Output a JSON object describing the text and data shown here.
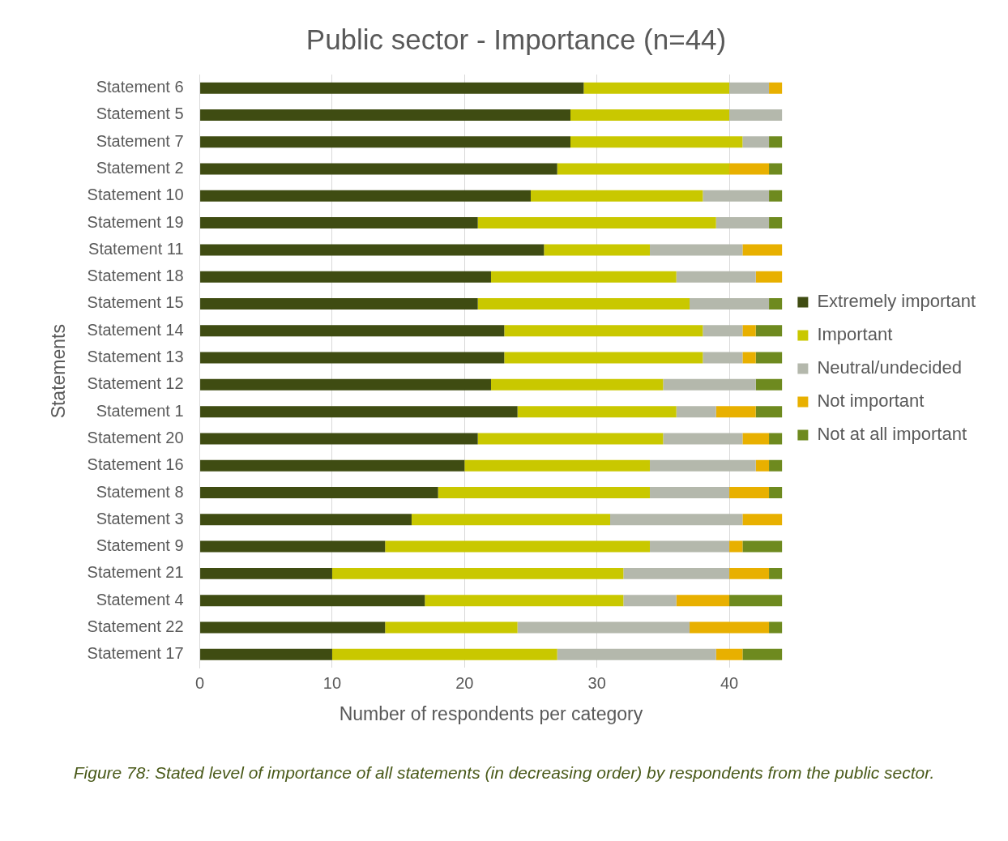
{
  "chart_data": {
    "type": "bar",
    "orientation": "horizontal",
    "stacked": true,
    "title": "Public sector - Importance (n=44)",
    "xlabel": "Number of respondents per category",
    "ylabel": "Statements",
    "categories": [
      "Statement 6",
      "Statement 5",
      "Statement 7",
      "Statement 2",
      "Statement 10",
      "Statement 19",
      "Statement 11",
      "Statement 18",
      "Statement 15",
      "Statement 14",
      "Statement 13",
      "Statement 12",
      "Statement 1",
      "Statement 20",
      "Statement 16",
      "Statement 8",
      "Statement 3",
      "Statement 9",
      "Statement 21",
      "Statement 4",
      "Statement 22",
      "Statement 17"
    ],
    "series": [
      {
        "name": "Extremely important",
        "color": "#3f4c12",
        "values": [
          29,
          28,
          28,
          27,
          25,
          21,
          26,
          22,
          21,
          23,
          23,
          22,
          24,
          21,
          20,
          18,
          16,
          14,
          10,
          17,
          14,
          10
        ]
      },
      {
        "name": "Important",
        "color": "#c9c800",
        "values": [
          11,
          12,
          13,
          13,
          13,
          18,
          8,
          14,
          16,
          15,
          15,
          13,
          12,
          14,
          14,
          16,
          15,
          20,
          22,
          15,
          10,
          17
        ]
      },
      {
        "name": "Neutral/undecided",
        "color": "#b4b8ac",
        "values": [
          3,
          4,
          2,
          0,
          5,
          4,
          7,
          6,
          6,
          3,
          3,
          7,
          3,
          6,
          8,
          6,
          10,
          6,
          8,
          4,
          13,
          12
        ]
      },
      {
        "name": "Not important",
        "color": "#e8b000",
        "values": [
          1,
          0,
          0,
          3,
          0,
          0,
          3,
          2,
          0,
          1,
          1,
          0,
          3,
          2,
          1,
          3,
          3,
          1,
          3,
          4,
          6,
          2
        ]
      },
      {
        "name": "Not at all important",
        "color": "#6e8a1f",
        "values": [
          0,
          0,
          1,
          1,
          1,
          1,
          0,
          0,
          1,
          2,
          2,
          2,
          2,
          1,
          1,
          1,
          0,
          3,
          1,
          4,
          1,
          3
        ]
      }
    ],
    "xlim": [
      0,
      44
    ],
    "xticks": [
      0,
      10,
      20,
      30,
      40
    ],
    "grid": "x",
    "legend": "right",
    "annotations": [
      "Figure 78: Stated level of importance of all statements (in decreasing order) by respondents from the public sector."
    ]
  }
}
